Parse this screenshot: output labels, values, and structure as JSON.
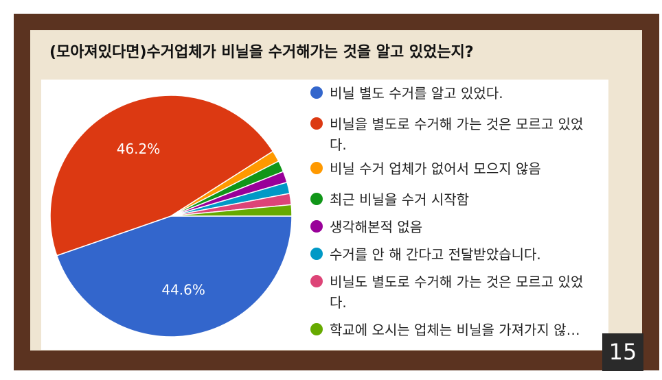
{
  "page": {
    "title": "(모아져있다면)수거업체가 비닐을 수거해가는 것을 알고 있었는지?",
    "page_number": "15"
  },
  "chart_data": {
    "type": "pie",
    "title": "(모아져있다면)수거업체가 비닐을 수거해가는 것을 알고 있었는지?",
    "slices": [
      {
        "label": "비닐 별도 수거를 알고 있었다.",
        "value": 44.6,
        "display": "44.6%",
        "color": "#3366cc"
      },
      {
        "label": "비닐을 별도로 수거해 가는 것은 모르고 있었다.",
        "value": 46.2,
        "display": "46.2%",
        "color": "#dc3912"
      },
      {
        "label": "비닐 수거 업체가 없어서 모으지 않음",
        "value": 1.5,
        "display": "",
        "color": "#ff9900"
      },
      {
        "label": "최근 비닐을 수거 시작함",
        "value": 1.5,
        "display": "",
        "color": "#109618"
      },
      {
        "label": "생각해본적 없음",
        "value": 1.5,
        "display": "",
        "color": "#990099"
      },
      {
        "label": "수거를 안 해 간다고 전달받았습니다.",
        "value": 1.5,
        "display": "",
        "color": "#0099c6"
      },
      {
        "label": "비닐도 별도로 수거해 가는 것은 모르고 있었다.",
        "value": 1.5,
        "display": "",
        "color": "#dd4477"
      },
      {
        "label": "학교에 오시는 업체는 비닐을 가져가지 않…",
        "value": 1.5,
        "display": "",
        "color": "#66aa00"
      }
    ],
    "legend_position": "right"
  }
}
